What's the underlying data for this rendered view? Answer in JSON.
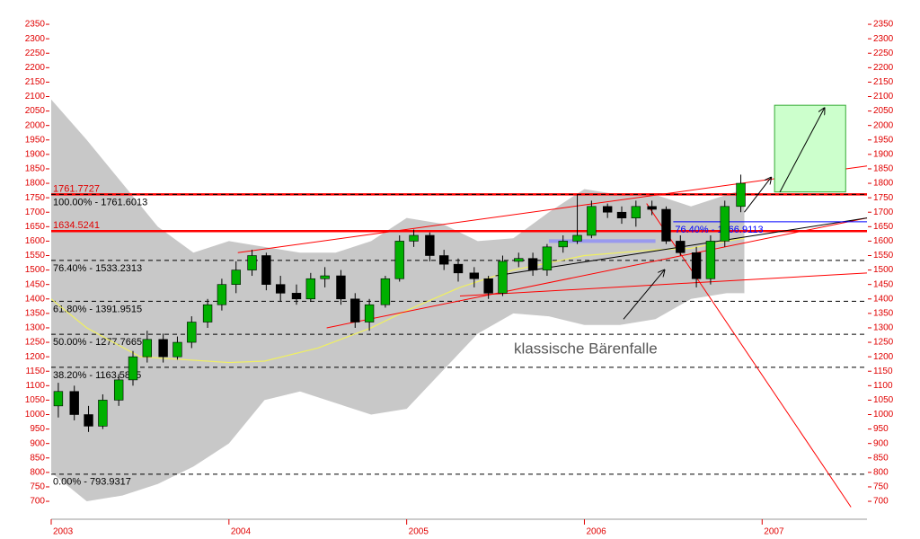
{
  "chart_data": {
    "type": "candlestick",
    "annotation": "klassische Bärenfalle",
    "xlim": [
      2003,
      2007.59
    ],
    "xticks": [
      2003,
      2004,
      2005,
      2006,
      2007
    ],
    "ylim": [
      638,
      2403
    ],
    "yticks": [
      700,
      750,
      800,
      850,
      900,
      950,
      1000,
      1050,
      1100,
      1150,
      1200,
      1250,
      1300,
      1350,
      1400,
      1450,
      1500,
      1550,
      1600,
      1650,
      1700,
      1750,
      1800,
      1850,
      1900,
      1950,
      2000,
      2050,
      2100,
      2150,
      2200,
      2250,
      2300,
      2350
    ],
    "x": [
      2003.04,
      2003.13,
      2003.21,
      2003.29,
      2003.38,
      2003.46,
      2003.54,
      2003.63,
      2003.71,
      2003.79,
      2003.88,
      2003.96,
      2004.04,
      2004.13,
      2004.21,
      2004.29,
      2004.38,
      2004.46,
      2004.54,
      2004.63,
      2004.71,
      2004.79,
      2004.88,
      2004.96,
      2005.04,
      2005.13,
      2005.21,
      2005.29,
      2005.38,
      2005.46,
      2005.54,
      2005.63,
      2005.71,
      2005.79,
      2005.88,
      2005.96,
      2006.04,
      2006.13,
      2006.21,
      2006.29,
      2006.38,
      2006.46,
      2006.54,
      2006.63,
      2006.71,
      2006.79,
      2006.88
    ],
    "open": [
      1030,
      1080,
      1000,
      960,
      1050,
      1120,
      1200,
      1260,
      1200,
      1250,
      1320,
      1380,
      1450,
      1500,
      1550,
      1450,
      1420,
      1400,
      1470,
      1480,
      1400,
      1320,
      1380,
      1470,
      1600,
      1620,
      1550,
      1520,
      1490,
      1470,
      1420,
      1530,
      1540,
      1500,
      1580,
      1600,
      1620,
      1720,
      1700,
      1680,
      1720,
      1710,
      1600,
      1560,
      1470,
      1600,
      1720
    ],
    "high": [
      1110,
      1100,
      1030,
      1070,
      1140,
      1220,
      1290,
      1280,
      1270,
      1340,
      1400,
      1470,
      1530,
      1570,
      1560,
      1480,
      1450,
      1490,
      1510,
      1500,
      1420,
      1400,
      1480,
      1620,
      1640,
      1630,
      1570,
      1540,
      1510,
      1480,
      1550,
      1560,
      1560,
      1590,
      1620,
      1760,
      1740,
      1730,
      1720,
      1740,
      1740,
      1720,
      1620,
      1580,
      1620,
      1740,
      1830
    ],
    "low": [
      990,
      980,
      940,
      950,
      1030,
      1100,
      1180,
      1180,
      1190,
      1230,
      1300,
      1360,
      1420,
      1480,
      1430,
      1390,
      1380,
      1390,
      1440,
      1380,
      1300,
      1290,
      1370,
      1460,
      1580,
      1530,
      1500,
      1460,
      1440,
      1400,
      1410,
      1510,
      1480,
      1480,
      1560,
      1590,
      1610,
      1680,
      1660,
      1650,
      1690,
      1590,
      1550,
      1440,
      1450,
      1580,
      1700
    ],
    "close": [
      1080,
      1000,
      960,
      1050,
      1120,
      1200,
      1260,
      1200,
      1250,
      1320,
      1380,
      1450,
      1500,
      1550,
      1450,
      1420,
      1400,
      1470,
      1480,
      1400,
      1320,
      1380,
      1470,
      1600,
      1620,
      1550,
      1520,
      1490,
      1470,
      1420,
      1530,
      1540,
      1500,
      1580,
      1600,
      1620,
      1720,
      1700,
      1680,
      1720,
      1710,
      1600,
      1560,
      1470,
      1600,
      1720,
      1800
    ],
    "band": {
      "color": "#c8c8c8",
      "x": [
        2003.0,
        2003.2,
        2003.4,
        2003.6,
        2003.8,
        2004.0,
        2004.2,
        2004.4,
        2004.6,
        2004.8,
        2005.0,
        2005.2,
        2005.4,
        2005.6,
        2005.8,
        2006.0,
        2006.2,
        2006.4,
        2006.6,
        2006.8,
        2006.9
      ],
      "upper": [
        2090,
        1950,
        1800,
        1650,
        1560,
        1600,
        1580,
        1560,
        1560,
        1600,
        1680,
        1660,
        1600,
        1610,
        1700,
        1780,
        1760,
        1760,
        1720,
        1760,
        1780
      ],
      "lower": [
        800,
        700,
        720,
        760,
        820,
        900,
        1050,
        1080,
        1040,
        1000,
        1020,
        1150,
        1280,
        1350,
        1340,
        1310,
        1310,
        1330,
        1400,
        1420,
        1420
      ]
    },
    "average": {
      "color": "#f0f060",
      "x": [
        2003.0,
        2003.2,
        2003.5,
        2004.0,
        2004.2,
        2004.5,
        2004.8,
        2005.0,
        2005.3,
        2005.6,
        2006.0,
        2006.4,
        2006.6,
        2006.8,
        2006.9
      ],
      "values": [
        1400,
        1300,
        1200,
        1180,
        1185,
        1230,
        1300,
        1360,
        1440,
        1500,
        1550,
        1570,
        1575,
        1600,
        1610
      ]
    },
    "levels": [
      {
        "label": "1761.7727",
        "value": 1761.7727,
        "color": "#ff0000",
        "dashed": false
      },
      {
        "label": "100.00% - 1761.6013",
        "value": 1761.6013,
        "color": "#000000",
        "dashed": true
      },
      {
        "label": "1634.5241",
        "value": 1634.5241,
        "color": "#ff0000",
        "dashed": false
      },
      {
        "label": "76.40% - 1533.2313",
        "value": 1533.2313,
        "color": "#000000",
        "dashed": true
      },
      {
        "label": "61.80% - 1391.9515",
        "value": 1391.9515,
        "color": "#000000",
        "dashed": true
      },
      {
        "label": "50.00% - 1277.7665",
        "value": 1277.7665,
        "color": "#000000",
        "dashed": true
      },
      {
        "label": "38.20% - 1163.5815",
        "value": 1163.5815,
        "color": "#000000",
        "dashed": true
      },
      {
        "label": "0.00% - 793.9317",
        "value": 793.9317,
        "color": "#000000",
        "dashed": true
      }
    ],
    "blue_level": {
      "label": "76.40% - 1666.9113",
      "value": 1666.9113,
      "x": [
        2006.5,
        2007.59
      ],
      "color": "#0000ff"
    },
    "trendlines": [
      {
        "color": "#ff0000",
        "x": [
          2004.05,
          2007.59
        ],
        "y": [
          1560,
          1860
        ]
      },
      {
        "color": "#ff0000",
        "x": [
          2004.55,
          2007.59
        ],
        "y": [
          1300,
          1680
        ]
      },
      {
        "color": "#ff0000",
        "x": [
          2005.3,
          2007.59
        ],
        "y": [
          1410,
          1490
        ]
      },
      {
        "color": "#ff0000",
        "x": [
          2006.35,
          2007.5
        ],
        "y": [
          1730,
          680
        ]
      },
      {
        "color": "#000000",
        "x": [
          2005.5,
          2007.59
        ],
        "y": [
          1480,
          1680
        ]
      },
      {
        "color": "#9999ee",
        "x": [
          2005.8,
          2006.4
        ],
        "y": [
          1600,
          1600
        ]
      }
    ],
    "target_box": {
      "color": "#ccffcc",
      "x": [
        2007.07,
        2007.47
      ],
      "y": [
        1770,
        2070
      ]
    },
    "arrows": [
      {
        "x": [
          2006.9,
          2007.05
        ],
        "y": [
          1700,
          1820
        ]
      },
      {
        "x": [
          2007.1,
          2007.35
        ],
        "y": [
          1770,
          2060
        ]
      },
      {
        "x": [
          2006.22,
          2006.45
        ],
        "y": [
          1330,
          1500
        ]
      }
    ]
  }
}
